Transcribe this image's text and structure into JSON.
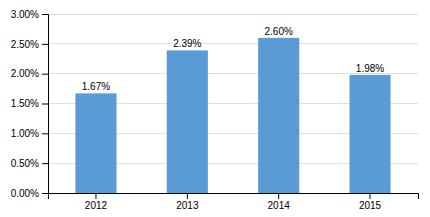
{
  "chart_data": {
    "type": "bar",
    "categories": [
      "2012",
      "2013",
      "2014",
      "2015"
    ],
    "values": [
      0.0167,
      0.0239,
      0.026,
      0.0198
    ],
    "value_labels": [
      "1.67%",
      "2.39%",
      "2.60%",
      "1.98%"
    ],
    "data_labels": true,
    "color": "#5B9BD5",
    "ylim": [
      0,
      0.03
    ],
    "yticks": [
      {
        "value": 0.0,
        "label": "0.00%"
      },
      {
        "value": 0.005,
        "label": "0.50%"
      },
      {
        "value": 0.01,
        "label": "1.00%"
      },
      {
        "value": 0.015,
        "label": "1.50%"
      },
      {
        "value": 0.02,
        "label": "2.00%"
      },
      {
        "value": 0.025,
        "label": "2.50%"
      },
      {
        "value": 0.03,
        "label": "3.00%"
      }
    ],
    "grid": true
  }
}
